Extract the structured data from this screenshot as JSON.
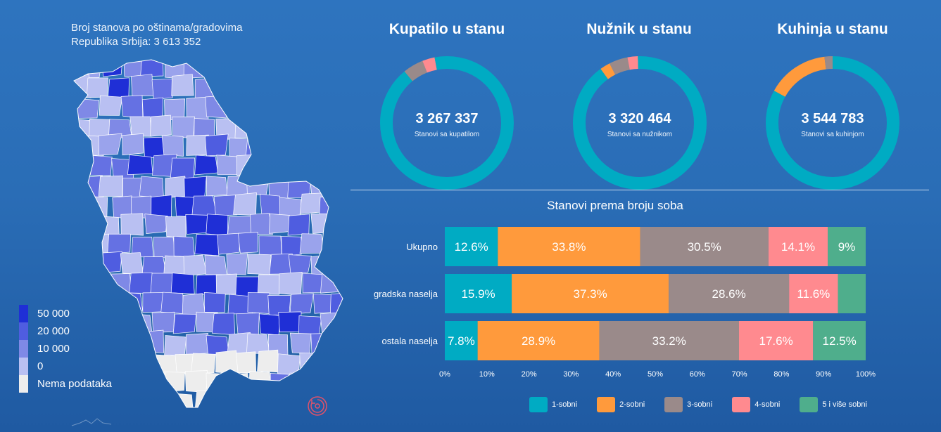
{
  "map": {
    "title_line1": "Broj stanova po oštinama/gradovima",
    "title_line2": "Republika Srbija: 3 613 352",
    "legend": [
      {
        "label": "50 000",
        "color": "#1f2fd6"
      },
      {
        "label": "20 000",
        "color": "#4f5de0"
      },
      {
        "label": "10 000",
        "color": "#7f89e6"
      },
      {
        "label": "0",
        "color": "#b9c0f2"
      },
      {
        "label": "Nema podataka",
        "color": "#ededed"
      }
    ]
  },
  "donuts": [
    {
      "title": "Kupatilo u stanu",
      "value": "3 267 337",
      "subtitle": "Stanovi sa kupatilom"
    },
    {
      "title": "Nužnik u stanu",
      "value": "3 320 464",
      "subtitle": "Stanovi sa nužnikom"
    },
    {
      "title": "Kuhinja u stanu",
      "value": "3 544 783",
      "subtitle": "Stanovi sa kuhinjom"
    }
  ],
  "chart_data": [
    {
      "type": "pie",
      "title": "Kupatilo u stanu",
      "center_value": "3 267 337",
      "center_label": "Stanovi sa kupatilom",
      "slices": [
        {
          "color": "#00abc3",
          "fraction": 0.89
        },
        {
          "color": "#9a8a8a",
          "fraction": 0.05
        },
        {
          "color": "#ff8a8f",
          "fraction": 0.03
        },
        {
          "color": "#00abc3",
          "fraction": 0.03
        }
      ]
    },
    {
      "type": "pie",
      "title": "Nužnik u stanu",
      "center_value": "3 320 464",
      "center_label": "Stanovi sa nužnikom",
      "slices": [
        {
          "color": "#00abc3",
          "fraction": 0.9
        },
        {
          "color": "#ff9a3c",
          "fraction": 0.025
        },
        {
          "color": "#9a8a8a",
          "fraction": 0.045
        },
        {
          "color": "#ff8a8f",
          "fraction": 0.025
        },
        {
          "color": "#00abc3",
          "fraction": 0.005
        }
      ]
    },
    {
      "type": "pie",
      "title": "Kuhinja u stanu",
      "center_value": "3 544 783",
      "center_label": "Stanovi sa kuhinjom",
      "slices": [
        {
          "color": "#00abc3",
          "fraction": 0.83
        },
        {
          "color": "#ff9a3c",
          "fraction": 0.15
        },
        {
          "color": "#9a8a8a",
          "fraction": 0.02
        }
      ]
    },
    {
      "type": "bar",
      "orientation": "horizontal",
      "stacked": true,
      "title": "Stanovi prema broju soba",
      "categories": [
        "Ukupno",
        "gradska naselja",
        "ostala naselja"
      ],
      "xlim": [
        0,
        100
      ],
      "xticks": [
        "0%",
        "10%",
        "20%",
        "30%",
        "40%",
        "50%",
        "60%",
        "70%",
        "80%",
        "90%",
        "100%"
      ],
      "legend_position": "bottom",
      "series": [
        {
          "name": "1-sobni",
          "color": "#00abc3",
          "values": [
            12.6,
            15.9,
            7.8
          ],
          "labels": [
            "12.6%",
            "15.9%",
            "7.8%"
          ]
        },
        {
          "name": "2-sobni",
          "color": "#ff9a3c",
          "values": [
            33.8,
            37.3,
            28.9
          ],
          "labels": [
            "33.8%",
            "37.3%",
            "28.9%"
          ]
        },
        {
          "name": "3-sobni",
          "color": "#9a8a8a",
          "values": [
            30.5,
            28.6,
            33.2
          ],
          "labels": [
            "30.5%",
            "28.6%",
            "33.2%"
          ]
        },
        {
          "name": "4-sobni",
          "color": "#ff8a8f",
          "values": [
            14.1,
            11.6,
            17.6
          ],
          "labels": [
            "14.1%",
            "11.6%",
            "17.6%"
          ]
        },
        {
          "name": "5 i više sobni",
          "color": "#4fae8c",
          "values": [
            9.0,
            6.6,
            12.5
          ],
          "labels": [
            "9%",
            "",
            "12.5%"
          ]
        }
      ]
    }
  ]
}
